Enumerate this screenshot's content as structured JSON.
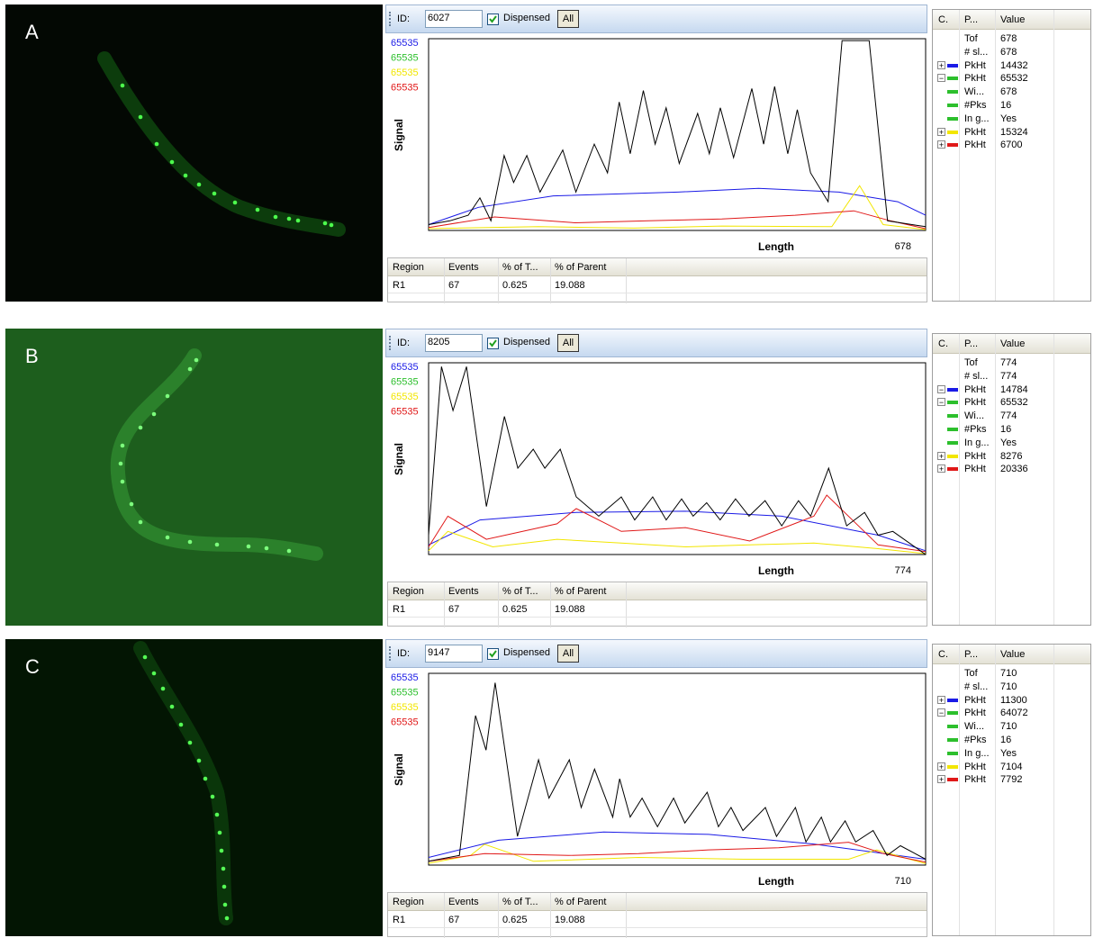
{
  "panels": [
    {
      "label": "A",
      "toolbar": {
        "id_label": "ID:",
        "id_value": "6027",
        "checkbox_label": "Dispensed",
        "button": "All"
      },
      "chart_data": {
        "type": "line",
        "y_label": "Signal",
        "x_label": "Length",
        "xlim": [
          0,
          678
        ],
        "ylim": [
          0,
          65535
        ],
        "series": [
          {
            "name": "65535",
            "color": "#1a1ae6",
            "line_color": "#1a1ae6",
            "x": [
              0,
              68,
              170,
              340,
              450,
              560,
              640,
              678
            ],
            "values": [
              2000,
              7900,
              11800,
              13100,
              14400,
              13100,
              9800,
              5200
            ]
          },
          {
            "name": "65535",
            "color": "#2cbf2c",
            "line_color": "#000000",
            "x": [
              0,
              29,
              54,
              70,
              85,
              103,
              116,
              134,
              152,
              183,
              201,
              226,
              244,
              260,
              275,
              293,
              309,
              324,
              342,
              367,
              383,
              398,
              416,
              441,
              457,
              472,
              490,
              503,
              521,
              545,
              564,
              601,
              626,
              678
            ],
            "values": [
              2000,
              3300,
              5200,
              11100,
              3300,
              25600,
              16400,
              25600,
              13100,
              27500,
              13100,
              29500,
              19700,
              43900,
              26200,
              47800,
              29500,
              41900,
              22900,
              40000,
              26200,
              41900,
              24900,
              48500,
              29500,
              49200,
              26200,
              41300,
              19700,
              9800,
              64900,
              64900,
              3300,
              1300
            ]
          },
          {
            "name": "65535",
            "color": "#f2e600",
            "line_color": "#f2e600",
            "x": [
              0,
              150,
              280,
              400,
              550,
              588,
              620,
              678
            ],
            "values": [
              600,
              1300,
              800,
              1500,
              1300,
              15300,
              2000,
              300
            ]
          },
          {
            "name": "65535",
            "color": "#e01818",
            "line_color": "#e01818",
            "x": [
              0,
              90,
              200,
              300,
              400,
              500,
              580,
              630,
              678
            ],
            "values": [
              1000,
              4600,
              2600,
              3300,
              3900,
              5200,
              6700,
              3300,
              600
            ]
          }
        ]
      },
      "region_table": {
        "headers": [
          "Region",
          "Events",
          "% of T...",
          "% of Parent"
        ],
        "rows": [
          [
            "R1",
            67,
            0.625,
            19.088
          ]
        ]
      },
      "param_table": {
        "headers": [
          "C.",
          "P...",
          "Value"
        ],
        "rows": [
          {
            "name": "Tof",
            "value": 678
          },
          {
            "name": "# sl...",
            "value": 678
          },
          {
            "expander": "+",
            "color": "#1a1ae6",
            "name": "PkHt",
            "value": 14432
          },
          {
            "expander": "−",
            "color": "#2cbf2c",
            "name": "PkHt",
            "value": 65532
          },
          {
            "color": "#2cbf2c",
            "name": "Wi...",
            "value": 678
          },
          {
            "color": "#2cbf2c",
            "name": "#Pks",
            "value": 16
          },
          {
            "color": "#2cbf2c",
            "name": "In g...",
            "value": "Yes"
          },
          {
            "expander": "+",
            "color": "#f2e600",
            "name": "PkHt",
            "value": 15324
          },
          {
            "expander": "+",
            "color": "#e01818",
            "name": "PkHt",
            "value": 6700
          }
        ]
      }
    },
    {
      "label": "B",
      "toolbar": {
        "id_label": "ID:",
        "id_value": "8205",
        "checkbox_label": "Dispensed",
        "button": "All"
      },
      "chart_data": {
        "type": "line",
        "y_label": "Signal",
        "x_label": "Length",
        "xlim": [
          0,
          774
        ],
        "ylim": [
          0,
          65535
        ],
        "series": [
          {
            "name": "65535",
            "color": "#1a1ae6",
            "line_color": "#1a1ae6",
            "x": [
              0,
              80,
              230,
              400,
              550,
              700,
              774
            ],
            "values": [
              3300,
              11800,
              14400,
              14800,
              13100,
              6600,
              1300
            ]
          },
          {
            "name": "65535",
            "color": "#2cbf2c",
            "line_color": "#000000",
            "x": [
              0,
              20,
              38,
              59,
              90,
              118,
              139,
              163,
              181,
              205,
              230,
              265,
              300,
              321,
              349,
              370,
              394,
              412,
              433,
              454,
              478,
              499,
              524,
              550,
              576,
              595,
              623,
              651,
              679,
              700,
              723,
              774
            ],
            "values": [
              6600,
              64200,
              49200,
              64200,
              16400,
              47200,
              29500,
              36000,
              29500,
              36000,
              19700,
              13100,
              19700,
              11800,
              19700,
              11800,
              19000,
              13100,
              17700,
              11800,
              19000,
              13100,
              18400,
              9800,
              18400,
              13100,
              29500,
              9800,
              14400,
              6600,
              7900,
              0
            ]
          },
          {
            "name": "65535",
            "color": "#f2e600",
            "line_color": "#f2e600",
            "x": [
              0,
              30,
              100,
              200,
              300,
              400,
              500,
              600,
              700,
              774
            ],
            "values": [
              1300,
              7900,
              2600,
              5200,
              3900,
              2600,
              3300,
              3900,
              2000,
              300
            ]
          },
          {
            "name": "65535",
            "color": "#e01818",
            "line_color": "#e01818",
            "x": [
              0,
              30,
              90,
              200,
              230,
              300,
              400,
              500,
              600,
              620,
              700,
              774
            ],
            "values": [
              2600,
              13100,
              5200,
              10500,
              15700,
              7900,
              9200,
              4600,
              13100,
              20300,
              3300,
              1000
            ]
          }
        ]
      },
      "region_table": {
        "headers": [
          "Region",
          "Events",
          "% of T...",
          "% of Parent"
        ],
        "rows": [
          [
            "R1",
            67,
            0.625,
            19.088
          ]
        ]
      },
      "param_table": {
        "headers": [
          "C.",
          "P...",
          "Value"
        ],
        "rows": [
          {
            "name": "Tof",
            "value": 774
          },
          {
            "name": "# sl...",
            "value": 774
          },
          {
            "expander": "−",
            "color": "#1a1ae6",
            "name": "PkHt",
            "value": 14784
          },
          {
            "expander": "−",
            "color": "#2cbf2c",
            "name": "PkHt",
            "value": 65532
          },
          {
            "color": "#2cbf2c",
            "name": "Wi...",
            "value": 774
          },
          {
            "color": "#2cbf2c",
            "name": "#Pks",
            "value": 16
          },
          {
            "color": "#2cbf2c",
            "name": "In g...",
            "value": "Yes"
          },
          {
            "expander": "+",
            "color": "#f2e600",
            "name": "PkHt",
            "value": 8276
          },
          {
            "expander": "+",
            "color": "#e01818",
            "name": "PkHt",
            "value": 20336
          }
        ]
      }
    },
    {
      "label": "C",
      "toolbar": {
        "id_label": "ID:",
        "id_value": "9147",
        "checkbox_label": "Dispensed",
        "button": "All"
      },
      "chart_data": {
        "type": "line",
        "y_label": "Signal",
        "x_label": "Length",
        "xlim": [
          0,
          710
        ],
        "ylim": [
          0,
          65535
        ],
        "series": [
          {
            "name": "65535",
            "color": "#1a1ae6",
            "line_color": "#1a1ae6",
            "x": [
              0,
              100,
              250,
              400,
              550,
              710
            ],
            "values": [
              2600,
              8500,
              11300,
              10500,
              7200,
              2000
            ]
          },
          {
            "name": "65535",
            "color": "#2cbf2c",
            "line_color": "#000000",
            "x": [
              0,
              44,
              67,
              82,
              95,
              127,
              157,
              172,
              201,
              218,
              237,
              263,
              273,
              288,
              305,
              327,
              350,
              366,
              398,
              414,
              432,
              449,
              481,
              497,
              524,
              539,
              561,
              574,
              595,
              610,
              635,
              655,
              674,
              710
            ],
            "values": [
              1300,
              3300,
              51100,
              39300,
              62300,
              9800,
              36000,
              22900,
              36000,
              19700,
              32800,
              16400,
              29500,
              16400,
              22900,
              13100,
              22900,
              14400,
              24900,
              13100,
              19700,
              11800,
              19700,
              9800,
              19700,
              7900,
              16400,
              7900,
              15100,
              7900,
              11800,
              3300,
              6600,
              2000
            ]
          },
          {
            "name": "65535",
            "color": "#f2e600",
            "line_color": "#f2e600",
            "x": [
              0,
              60,
              80,
              150,
              300,
              450,
              600,
              640,
              710
            ],
            "values": [
              600,
              3300,
              7100,
              1300,
              2600,
              2000,
              2000,
              5200,
              500
            ]
          },
          {
            "name": "65535",
            "color": "#e01818",
            "line_color": "#e01818",
            "x": [
              0,
              80,
              200,
              300,
              400,
              500,
              600,
              650,
              710
            ],
            "values": [
              1300,
              3900,
              3300,
              3900,
              5200,
              5900,
              7800,
              3900,
              1000
            ]
          }
        ]
      },
      "region_table": {
        "headers": [
          "Region",
          "Events",
          "% of T...",
          "% of Parent"
        ],
        "rows": [
          [
            "R1",
            67,
            0.625,
            19.088
          ]
        ]
      },
      "param_table": {
        "headers": [
          "C.",
          "P...",
          "Value"
        ],
        "rows": [
          {
            "name": "Tof",
            "value": 710
          },
          {
            "name": "# sl...",
            "value": 710
          },
          {
            "expander": "+",
            "color": "#1a1ae6",
            "name": "PkHt",
            "value": 11300
          },
          {
            "expander": "−",
            "color": "#2cbf2c",
            "name": "PkHt",
            "value": 64072
          },
          {
            "color": "#2cbf2c",
            "name": "Wi...",
            "value": 710
          },
          {
            "color": "#2cbf2c",
            "name": "#Pks",
            "value": 16
          },
          {
            "color": "#2cbf2c",
            "name": "In g...",
            "value": "Yes"
          },
          {
            "expander": "+",
            "color": "#f2e600",
            "name": "PkHt",
            "value": 7104
          },
          {
            "expander": "+",
            "color": "#e01818",
            "name": "PkHt",
            "value": 7792
          }
        ]
      }
    }
  ]
}
